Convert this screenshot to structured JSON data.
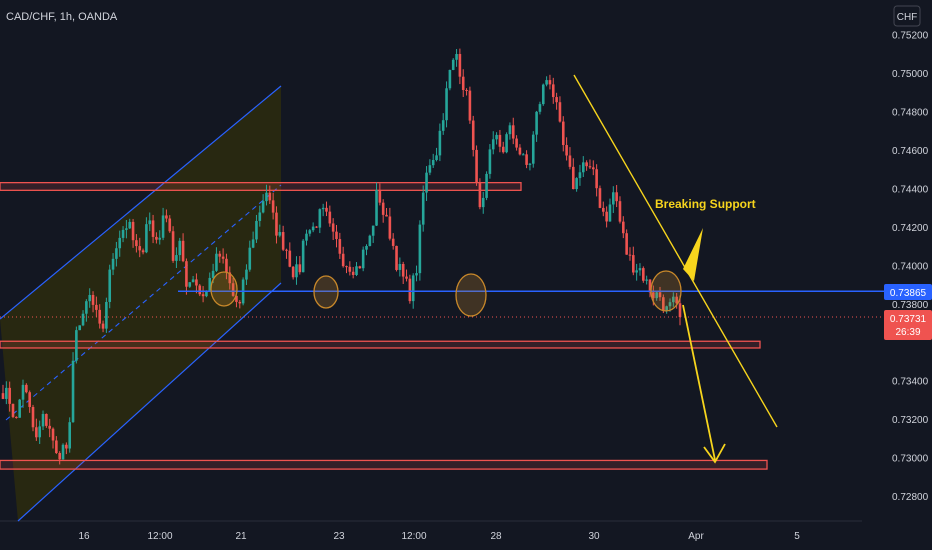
{
  "header": {
    "symbol": "CAD/CHF, 1h, OANDA",
    "currency_button": "CHF"
  },
  "annotations": {
    "breaking_support": "Breaking Support"
  },
  "colors": {
    "background": "#131722",
    "bull": "#26a69a",
    "bear": "#ef5350",
    "channel": "#2962ff",
    "channel_fill": "#2b2a10",
    "zone": "#ef5350",
    "support": "#2962ff",
    "arrow": "#f7d51d",
    "circle": "#c8882a"
  },
  "chart_data": {
    "type": "candlestick",
    "symbol": "CAD/CHF",
    "timeframe": "1h",
    "source": "OANDA",
    "x_tick_labels": [
      "16",
      "12:00",
      "21",
      "23",
      "12:00",
      "28",
      "30",
      "Apr",
      "5"
    ],
    "y_tick_labels": [
      "0.75200",
      "0.75000",
      "0.74800",
      "0.74600",
      "0.74400",
      "0.74200",
      "0.74000",
      "0.73800",
      "0.73400",
      "0.73200",
      "0.73000",
      "0.72800"
    ],
    "y_ticks": [
      0.752,
      0.75,
      0.748,
      0.746,
      0.744,
      0.742,
      0.74,
      0.738,
      0.734,
      0.732,
      0.73,
      0.728
    ],
    "ylim": [
      0.7267,
      0.7538
    ],
    "price_tags": [
      {
        "label": "0.73865",
        "value": 0.73865,
        "color": "#2962ff"
      },
      {
        "label": "0.73731",
        "value": 0.73731,
        "color": "#ef5350",
        "countdown": "26:39"
      }
    ],
    "resistance_zone_top": [
      0.7443,
      0.7439
    ],
    "resistance_zone_mid": [
      0.73605,
      0.7357
    ],
    "resistance_zone_low": [
      0.72985,
      0.7294
    ],
    "support_line": 0.73865,
    "current_price": 0.73731,
    "candle_waypoints": [
      [
        0.7335,
        0.733
      ],
      [
        0.7318,
        0.734
      ],
      [
        0.7325,
        0.7308
      ],
      [
        0.732,
        0.7318
      ],
      [
        0.73,
        0.7305
      ],
      [
        0.7305,
        0.737
      ],
      [
        0.7368,
        0.7385
      ],
      [
        0.7376,
        0.7362
      ],
      [
        0.739,
        0.741
      ],
      [
        0.7418,
        0.7422
      ],
      [
        0.741,
        0.7403
      ],
      [
        0.7428,
        0.7412
      ],
      [
        0.7418,
        0.743
      ],
      [
        0.74,
        0.741
      ],
      [
        0.739,
        0.7395
      ],
      [
        0.7385,
        0.7386
      ],
      [
        0.74,
        0.7405
      ],
      [
        0.7395,
        0.7384
      ],
      [
        0.7378,
        0.7398
      ],
      [
        0.7415,
        0.7428
      ],
      [
        0.744,
        0.7425
      ],
      [
        0.7415,
        0.741
      ],
      [
        0.7398,
        0.7395
      ],
      [
        0.742,
        0.7418
      ],
      [
        0.7425,
        0.7427
      ],
      [
        0.7415,
        0.741
      ],
      [
        0.7402,
        0.74
      ],
      [
        0.7398,
        0.7408
      ],
      [
        0.7415,
        0.744
      ],
      [
        0.7425,
        0.7416
      ],
      [
        0.74,
        0.7392
      ],
      [
        0.7385,
        0.74
      ],
      [
        0.744,
        0.7455
      ],
      [
        0.746,
        0.748
      ],
      [
        0.75,
        0.751
      ],
      [
        0.7495,
        0.748
      ],
      [
        0.744,
        0.743
      ],
      [
        0.7455,
        0.7466
      ],
      [
        0.746,
        0.747
      ],
      [
        0.7465,
        0.7455
      ],
      [
        0.745,
        0.7475
      ],
      [
        0.749,
        0.75
      ],
      [
        0.7485,
        0.7465
      ],
      [
        0.745,
        0.744
      ],
      [
        0.7455,
        0.745
      ],
      [
        0.7445,
        0.743
      ],
      [
        0.7425,
        0.744
      ],
      [
        0.742,
        0.7405
      ],
      [
        0.74,
        0.7398
      ],
      [
        0.739,
        0.7385
      ],
      [
        0.7384,
        0.7376
      ],
      [
        0.738,
        0.7373
      ]
    ],
    "candle_count": 204
  }
}
